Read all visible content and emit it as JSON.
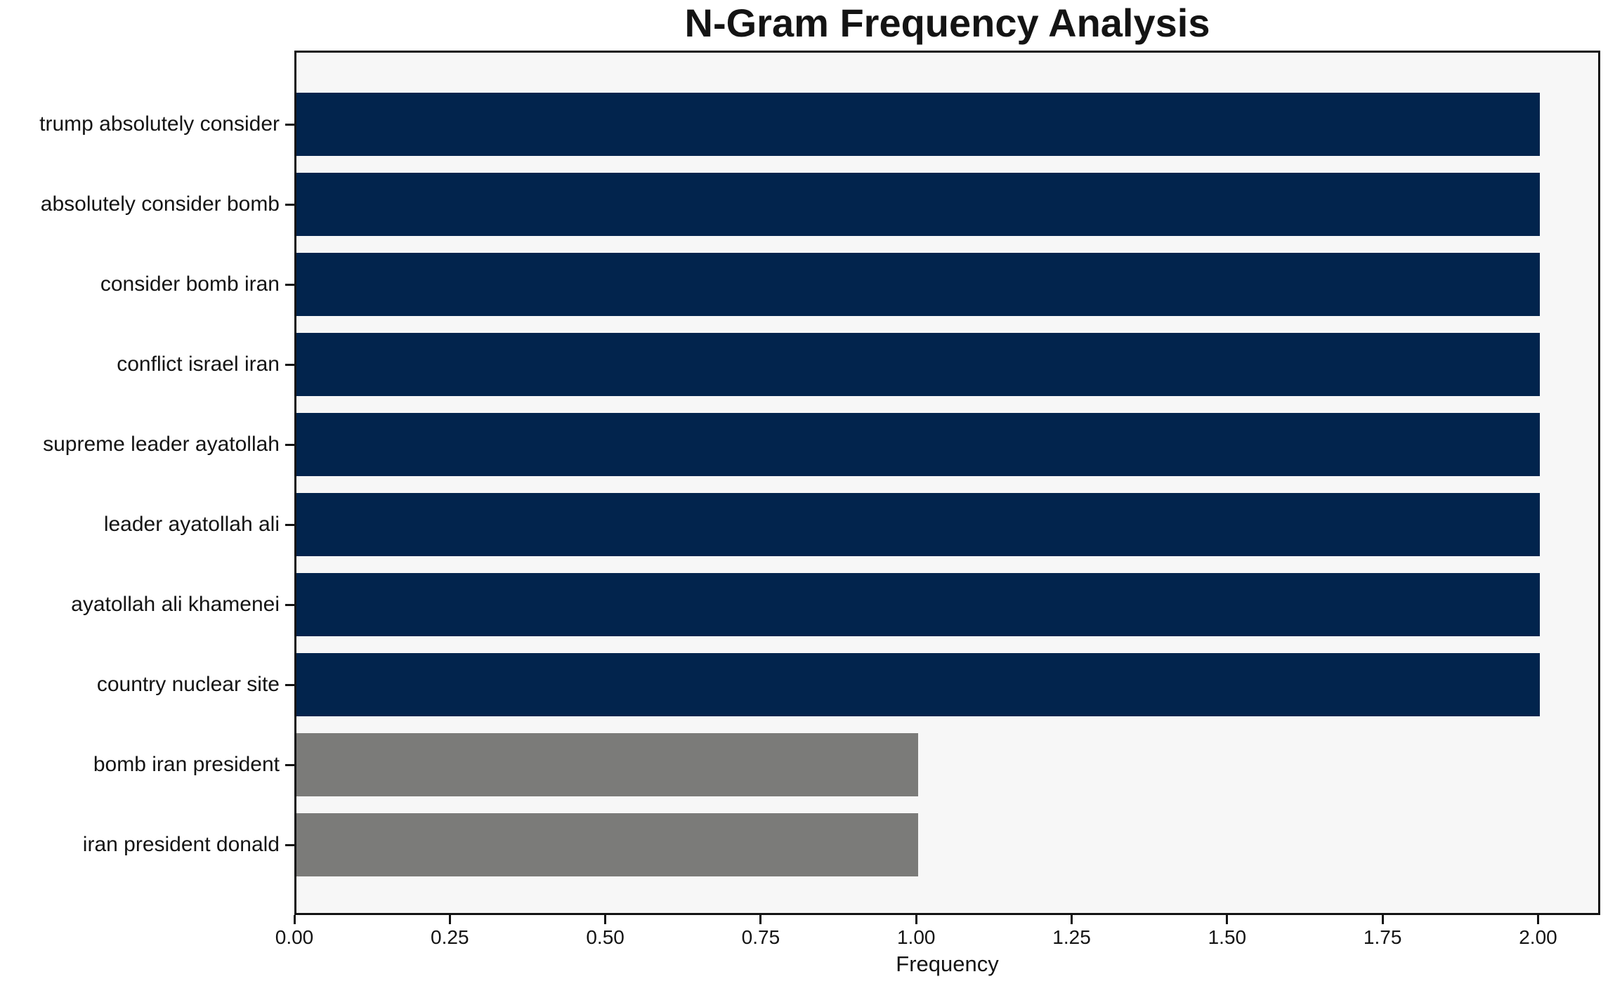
{
  "chart_data": {
    "type": "bar",
    "orientation": "horizontal",
    "title": "N-Gram Frequency Analysis",
    "xlabel": "Frequency",
    "ylabel": "",
    "categories": [
      "trump absolutely consider",
      "absolutely consider bomb",
      "consider bomb iran",
      "conflict israel iran",
      "supreme leader ayatollah",
      "leader ayatollah ali",
      "ayatollah ali khamenei",
      "country nuclear site",
      "bomb iran president",
      "iran president donald"
    ],
    "values": [
      2,
      2,
      2,
      2,
      2,
      2,
      2,
      2,
      1,
      1
    ],
    "bar_colors": [
      "#02244d",
      "#02244d",
      "#02244d",
      "#02244d",
      "#02244d",
      "#02244d",
      "#02244d",
      "#02244d",
      "#7b7b79",
      "#7b7b79"
    ],
    "xlim": [
      0,
      2.1
    ],
    "xticks": [
      "0.00",
      "0.25",
      "0.50",
      "0.75",
      "1.00",
      "1.25",
      "1.50",
      "1.75",
      "2.00"
    ],
    "grid": false,
    "legend_position": "none",
    "colors": {
      "bar_primary": "#02244d",
      "bar_secondary": "#7b7b79",
      "plot_background": "#f7f7f7",
      "figure_background": "#ffffff",
      "text": "#141414"
    }
  }
}
